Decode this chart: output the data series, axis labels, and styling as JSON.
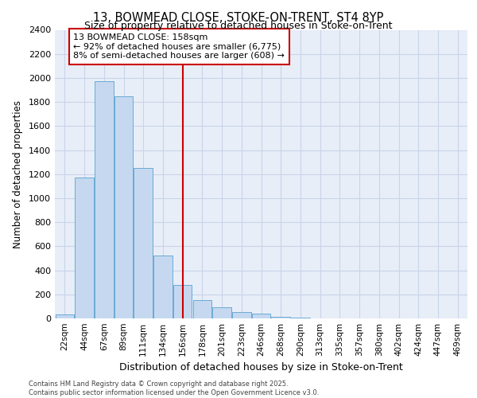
{
  "title1": "13, BOWMEAD CLOSE, STOKE-ON-TRENT, ST4 8YP",
  "title2": "Size of property relative to detached houses in Stoke-on-Trent",
  "xlabel": "Distribution of detached houses by size in Stoke-on-Trent",
  "ylabel": "Number of detached properties",
  "annotation_text1": "13 BOWMEAD CLOSE: 158sqm",
  "annotation_text2": "← 92% of detached houses are smaller (6,775)",
  "annotation_text3": "8% of semi-detached houses are larger (608) →",
  "footer1": "Contains HM Land Registry data © Crown copyright and database right 2025.",
  "footer2": "Contains public sector information licensed under the Open Government Licence v3.0.",
  "bin_labels": [
    "22sqm",
    "44sqm",
    "67sqm",
    "89sqm",
    "111sqm",
    "134sqm",
    "156sqm",
    "178sqm",
    "201sqm",
    "223sqm",
    "246sqm",
    "268sqm",
    "290sqm",
    "313sqm",
    "335sqm",
    "357sqm",
    "380sqm",
    "402sqm",
    "424sqm",
    "447sqm",
    "469sqm"
  ],
  "bin_values": [
    30,
    1175,
    1975,
    1850,
    1250,
    525,
    275,
    150,
    90,
    55,
    40,
    15,
    5,
    2,
    2,
    1,
    1,
    0,
    0,
    0,
    0
  ],
  "bar_color": "#c5d8f0",
  "bar_edge_color": "#6aaad4",
  "grid_color": "#c8d4e8",
  "background_color": "#e8eef8",
  "red_line_color": "#cc0000",
  "annotation_box_color": "#ffffff",
  "annotation_box_edge": "#cc0000",
  "ylim": [
    0,
    2400
  ],
  "yticks": [
    0,
    200,
    400,
    600,
    800,
    1000,
    1200,
    1400,
    1600,
    1800,
    2000,
    2200,
    2400
  ],
  "red_line_x": 6
}
